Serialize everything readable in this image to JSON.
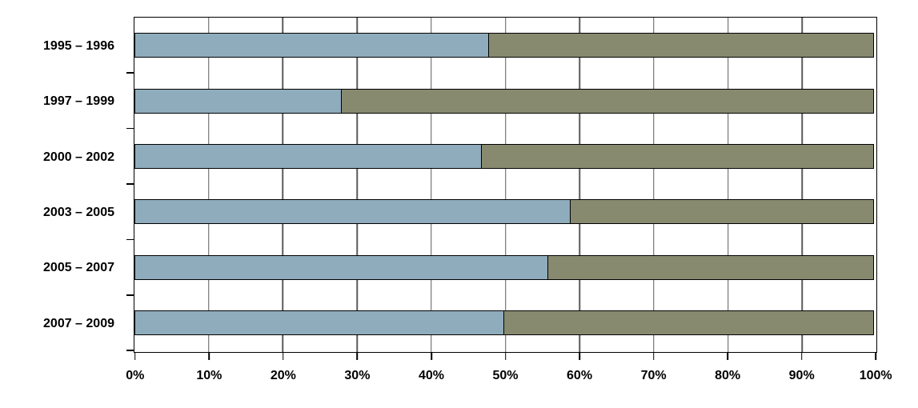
{
  "chart_data": {
    "type": "bar",
    "orientation": "horizontal",
    "stacked": true,
    "title": "",
    "legend": "none",
    "categories": [
      "1995 – 1996",
      "1997 – 1999",
      "2000 – 2002",
      "2003 – 2005",
      "2005 – 2007",
      "2007 – 2009"
    ],
    "series": [
      {
        "name": "series-1-blue",
        "color": "#8FACBC",
        "values": [
          48,
          28,
          47,
          59,
          56,
          50
        ]
      },
      {
        "name": "series-2-olive",
        "color": "#888A70",
        "values": [
          52,
          72,
          53,
          41,
          44,
          50
        ]
      }
    ],
    "x_axis": {
      "min": 0,
      "max": 100,
      "unit": "%",
      "tick_labels": [
        "0%",
        "10%",
        "20%",
        "30%",
        "40%",
        "50%",
        "60%",
        "70%",
        "80%",
        "90%",
        "100%"
      ],
      "gridlines": true
    },
    "y_axis": {
      "tick_marks": "category-boundaries"
    }
  },
  "colors": {
    "background": "#FFFFFF",
    "bar_border": "#000000",
    "gridline": "#5A5A5A",
    "axis": "#000000",
    "label_text": "#000000"
  }
}
